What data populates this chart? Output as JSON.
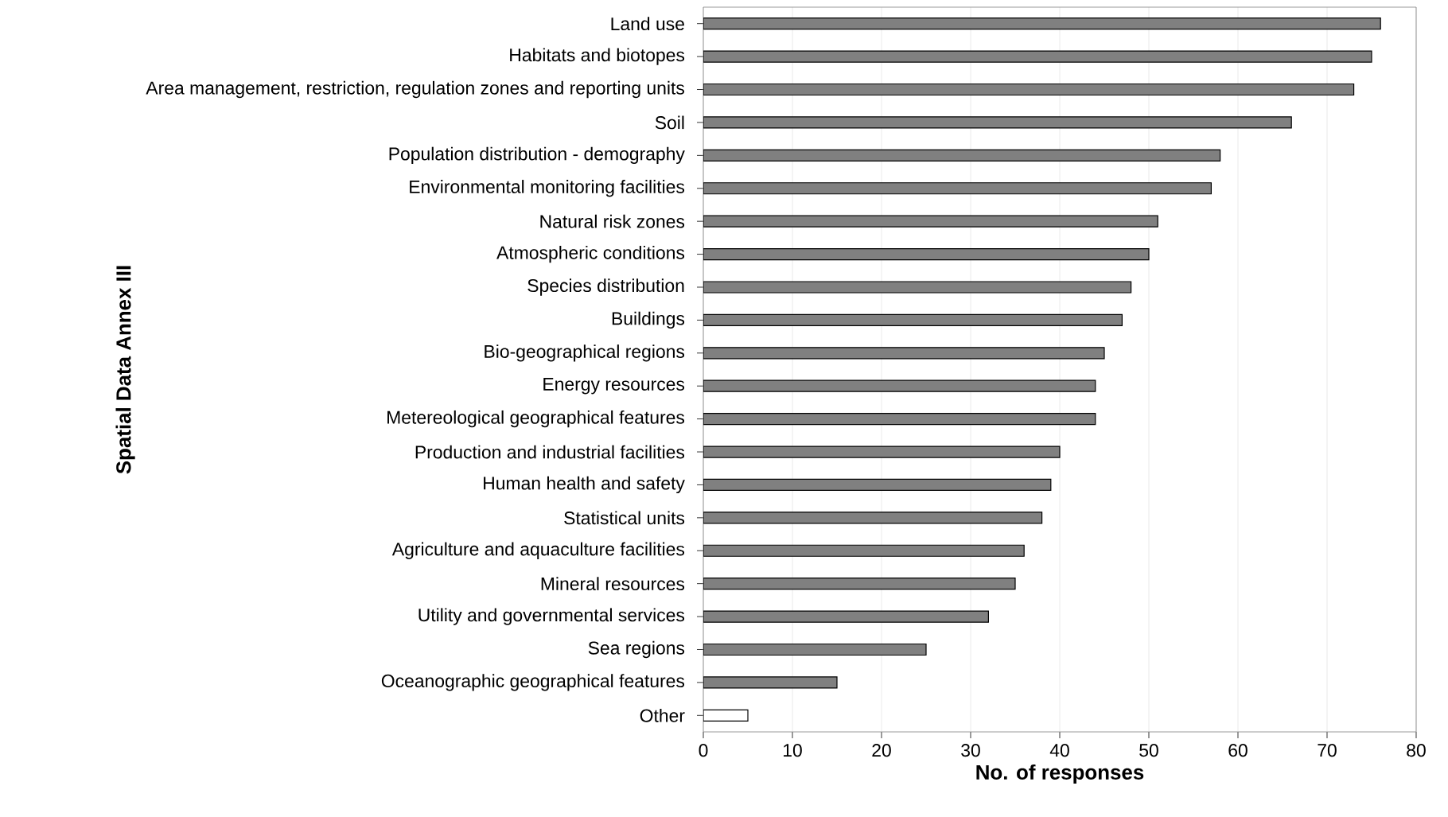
{
  "chart_data": {
    "type": "bar",
    "orientation": "horizontal",
    "xlabel": "No. of responses",
    "ylabel": "Spatial Data Annex III",
    "categories": [
      "Land use",
      "Habitats and biotopes",
      "Area management, restriction, regulation zones and reporting units",
      "Soil",
      "Population distribution - demography",
      "Environmental monitoring facilities",
      "Natural risk zones",
      "Atmospheric conditions",
      "Species distribution",
      "Buildings",
      "Bio-geographical regions",
      "Energy resources",
      "Metereological geographical features",
      "Production and industrial facilities",
      "Human health and safety",
      "Statistical units",
      "Agriculture and aquaculture facilities",
      "Mineral resources",
      "Utility and governmental services",
      "Sea regions",
      "Oceanographic geographical features",
      "Other"
    ],
    "values": [
      76,
      75,
      73,
      66,
      58,
      57,
      51,
      50,
      48,
      47,
      45,
      44,
      44,
      40,
      39,
      38,
      36,
      35,
      32,
      25,
      15,
      5
    ],
    "colors": [
      "#808080",
      "#808080",
      "#808080",
      "#808080",
      "#808080",
      "#808080",
      "#808080",
      "#808080",
      "#808080",
      "#808080",
      "#808080",
      "#808080",
      "#808080",
      "#808080",
      "#808080",
      "#808080",
      "#808080",
      "#808080",
      "#808080",
      "#808080",
      "#808080",
      "#ffffff"
    ],
    "xlim": [
      0,
      80
    ],
    "xticks": [
      0,
      10,
      20,
      30,
      40,
      50,
      60,
      70,
      80
    ],
    "grid": "x"
  }
}
